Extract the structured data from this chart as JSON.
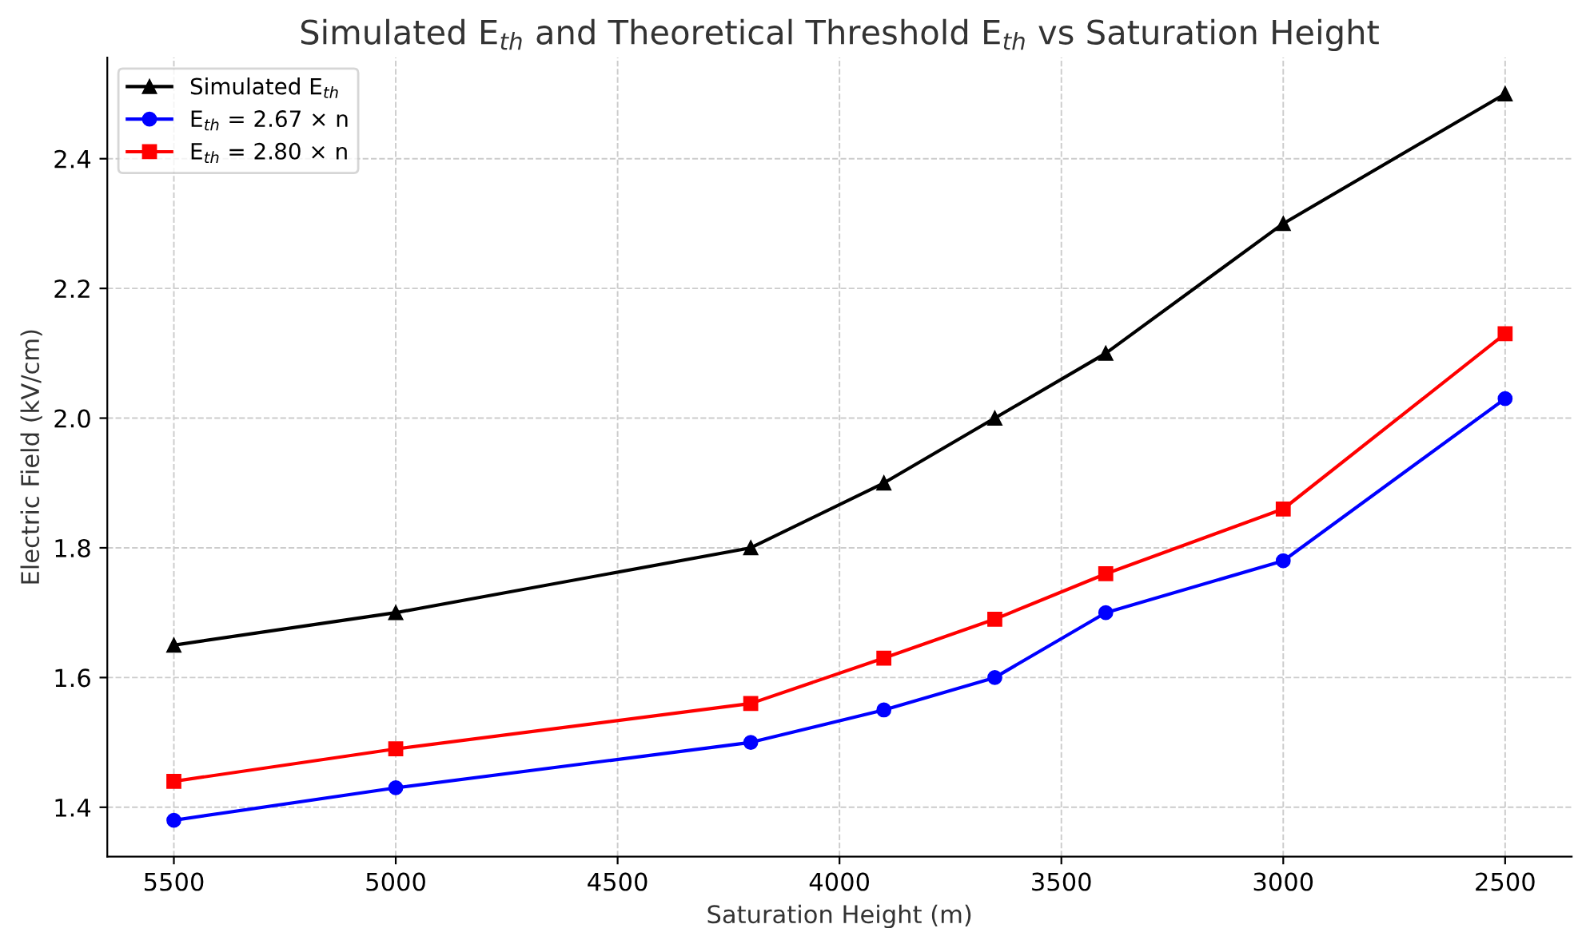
{
  "chart_data": {
    "type": "line",
    "title": "Simulated E$_{th}$ and Theoretical Threshold E$_{th}$ vs Saturation Height",
    "xlabel": "Saturation Height (m)",
    "ylabel": "Electric Field (kV/cm)",
    "x": [
      5500,
      5000,
      4200,
      3900,
      3650,
      3400,
      3000,
      2500
    ],
    "series": [
      {
        "name": "Simulated E$_{th}$",
        "color": "#000000",
        "marker": "triangle",
        "values": [
          1.65,
          1.7,
          1.8,
          1.9,
          2.0,
          2.1,
          2.3,
          2.5
        ]
      },
      {
        "name": "E$_{th}$ = 2.67 × n",
        "color": "#0000ff",
        "marker": "circle",
        "values": [
          1.38,
          1.43,
          1.5,
          1.55,
          1.6,
          1.7,
          1.78,
          2.03
        ]
      },
      {
        "name": "E$_{th}$ = 2.80 × n",
        "color": "#ff0000",
        "marker": "square",
        "values": [
          1.44,
          1.49,
          1.56,
          1.63,
          1.69,
          1.76,
          1.86,
          2.13
        ]
      }
    ],
    "xlim": [
      5650,
      2350
    ],
    "xticks": [
      5500,
      5000,
      4500,
      4000,
      3500,
      3000,
      2500
    ],
    "ylim": [
      1.324,
      2.556
    ],
    "yticks": [
      {
        "value": 1.4,
        "label": "1.4"
      },
      {
        "value": 1.6,
        "label": "1.6"
      },
      {
        "value": 1.8,
        "label": "1.8"
      },
      {
        "value": 2.0,
        "label": "2.0"
      },
      {
        "value": 2.2,
        "label": "2.2"
      },
      {
        "value": 2.4,
        "label": "2.4"
      }
    ],
    "grid": true,
    "legend": "top left",
    "line_style": "solid"
  }
}
